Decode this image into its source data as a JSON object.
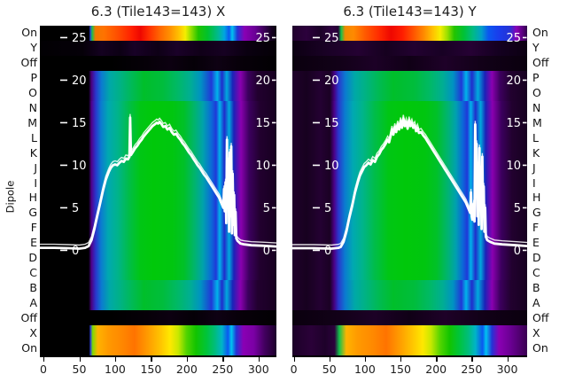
{
  "colors": {
    "background": "#ffffff",
    "text": "#1c1c1c",
    "line": "#ffffff",
    "axis": "#000000"
  },
  "chart_data": {
    "type": "heatmap",
    "ylabel": "Dipole",
    "dipole_rows_top_to_bottom": [
      "On",
      "Y",
      "Off",
      "P",
      "O",
      "N",
      "M",
      "L",
      "K",
      "J",
      "I",
      "H",
      "G",
      "F",
      "E",
      "D",
      "C",
      "B",
      "A",
      "Off",
      "X",
      "On"
    ],
    "inner_power_ticks": [
      25,
      20,
      15,
      10,
      5,
      0
    ],
    "x_ticks": [
      0,
      50,
      100,
      150,
      200,
      250,
      300
    ],
    "gradients": {
      "l_on": "linear-gradient(90deg,#000000 0%,#000000 20.8%,#2b3fd9 21.3%,#18c24b 22.1%,#f07800 23.5%,#ff7300 27%,#ff4d00 33%,#ff1e00 39%,#ee0700 42.5%,#ff2e00 46%,#ff6a00 51%,#ff9100 55%,#ffc400 59%,#f4ee00 61.5%,#8edd00 64%,#1fc400 67%,#00c22e 71%,#00b894 75.5%,#00a6e0 78%,#0b57f0 80%,#00c4f0 81.3%,#2434d6 83.5%,#8a00b4 86.5%,#6a0096 91%,#3a0055 95%,#140020 98%,#0a0010 100%)",
      "l_y": "linear-gradient(90deg,#020003 0%,#050008 18%,#140120 26%,#0c0014 34%,#180126 40%,#0e0016 50%,#1a0128 58%,#100018 68%,#160122 78%,#0a0010 88%,#040006 100%)",
      "l_off": "linear-gradient(90deg,#000000 0%,#000000 30%,#060008 45%,#0c0010 55%,#050007 65%,#0e0113 75%,#070009 85%,#020003 100%)",
      "l_ma": "linear-gradient(90deg,#000000 0%,#000000 20.6%,#4b0080 21.8%,#2a35cc 23.6%,#0b7ad0 26%,#00a8a8 29.5%,#00b284 34%,#00ba55 39%,#00bf2a 44%,#00bd3c 52%,#00b965 58%,#00ae92 63.5%,#0092c2 68%,#2038d8 72.5%,#00b4ea 75%,#1f2dcc 77%,#00aadd 79%,#1a23b8 81.5%,#8a00b0 84.8%,#3c005e 88%,#22002f 92%,#170020 100%)",
      "l_mb": "linear-gradient(90deg,#000000 0%,#000000 20.6%,#50008c 21.8%,#2a35cc 23.6%,#0b7ad0 25.8%,#00a8b2 28.8%,#00b48a 33%,#00bd4a 37.5%,#00c614 42.5%,#00c80a 48%,#00c60f 56%,#00c128 61%,#00b46e 65.5%,#00a2ac 69%,#0b6ad8 72.5%,#2038d8 74.5%,#00b4ea 76%,#1f2dcc 78%,#00aadd 80%,#1a23b8 82%,#8a00b0 85%,#3c005e 88.5%,#22002f 93%,#170020 100%)",
      "l_x": "linear-gradient(90deg,#000000 0%,#000000 20.8%,#2b3fd9 21.4%,#7ddc00 22.3%,#ffb300 24.5%,#ff9900 29%,#ff8a00 34%,#ff7300 40%,#ff9e00 46%,#ffc400 51%,#ffe800 55%,#c8e800 58.5%,#52d400 62%,#12c400 66%,#00c43a 70.5%,#00bd7c 74%,#00b4c8 77%,#0b57f0 79.5%,#00c4f0 81%,#2434d6 83%,#8a00b4 86%,#7a00a4 90.5%,#42005f 95%,#1c002a 100%)",
      "r_on": "linear-gradient(90deg,#21012e 0%,#2c013c 6%,#1c0128 12%,#300142 17%,#260134 19.5%,#14c24b 20.8%,#f08a00 22.5%,#ff8a00 26%,#ff5a00 31%,#ff2a00 37%,#ee0700 42%,#ff1e00 47%,#ff4d00 51%,#ff8a00 56%,#ffc400 60%,#f4ee00 63%,#9ae000 66%,#22c400 69%,#00c235 73%,#00ba86 77%,#00a0c8 80.5%,#0b57f0 83.5%,#1a3cec 88%,#2434d6 92.5%,#8a00b4 95.5%,#5a0080 98%,#30004a 100%)",
      "r_y": "linear-gradient(90deg,#0c0012 0%,#1a0126 15%,#240132 28%,#16011f 40%,#220130 52%,#180124 64%,#260134 76%,#140020 88%,#0c0012 100%)",
      "r_off": "linear-gradient(90deg,#0a000e 0%,#120118 20%,#1c0126 35%,#100016 50%,#1e0128 65%,#120118 80%,#0a000e 100%)",
      "r_ma": "linear-gradient(90deg,#20012c 0%,#17011f 6%,#240132 12%,#1a0124 16%,#46007e 17.8%,#2a35cc 19.6%,#0b7ad0 22.5%,#00a8a8 26.5%,#00b284 31%,#00ba55 36.5%,#00bf2a 43%,#00bd3c 52%,#00b965 58.5%,#00ae92 64%,#0092c2 68.5%,#2038d8 72%,#00b4ea 74%,#1f2dcc 76.5%,#00aadd 79%,#1a23b8 82%,#8a00b0 85%,#3c005e 88.5%,#22012f 93%,#170120 100%)",
      "r_mb": "linear-gradient(90deg,#20012c 0%,#17011f 6%,#240132 12%,#1a0124 16%,#4c0086 17.8%,#2a35cc 19.6%,#0b7ad0 22.3%,#00a8b2 25.8%,#00b48a 30%,#00bd4a 35%,#00c614 41%,#00c80a 48%,#00c60f 56.5%,#00c128 61.5%,#00b46e 66%,#00a2ac 69.5%,#0b6ad8 72.5%,#2038d8 74.5%,#00b4ea 76%,#1f2dcc 78%,#00aadd 80.2%,#1a23b8 82.3%,#8a00b0 85.2%,#3c005e 89%,#22012f 93.5%,#170120 100%)",
      "r_x": "linear-gradient(90deg,#1c0128 0%,#2a0138 8%,#1e012a 14%,#2c013c 18%,#14c24b 20%,#ffb300 23%,#ff9900 28%,#ff8a00 34%,#ff7300 40%,#ff9e00 46%,#ffc400 51%,#ffe800 55.5%,#c8e800 59%,#52d400 63%,#12c400 67%,#00c43a 71%,#00bd7c 75%,#00b4c8 78%,#0b57f0 81%,#00c4f0 82.5%,#2434d6 85%,#8a00b4 88%,#6a0092 93%,#3a0052 100%)"
    },
    "panels": [
      {
        "id": "X",
        "title": "6.3 (Tile143=143) X",
        "x_range": [
          -5,
          325
        ],
        "row_styles": [
          "l_on",
          "l_y",
          "l_off",
          "l_ma",
          "l_ma",
          "l_mb",
          "l_mb",
          "l_mb",
          "l_mb",
          "l_mb",
          "l_mb",
          "l_mb",
          "l_mb",
          "l_mb",
          "l_mb",
          "l_mb",
          "l_mb",
          "l_ma",
          "l_ma",
          "l_off",
          "l_x",
          "l_x"
        ],
        "line_points": [
          [
            0,
            0.3
          ],
          [
            20,
            0.3
          ],
          [
            40,
            0.25
          ],
          [
            55,
            0.2
          ],
          [
            63,
            0.3
          ],
          [
            68,
            0.5
          ],
          [
            72,
            1.2
          ],
          [
            76,
            2.5
          ],
          [
            80,
            4
          ],
          [
            84,
            5.5
          ],
          [
            88,
            7
          ],
          [
            92,
            8.3
          ],
          [
            96,
            9.2
          ],
          [
            99,
            9.7
          ],
          [
            102,
            10
          ],
          [
            105,
            10.1
          ],
          [
            108,
            10
          ],
          [
            111,
            10.3
          ],
          [
            114,
            10.5
          ],
          [
            117,
            10.4
          ],
          [
            120,
            10.8
          ],
          [
            123,
            10.7
          ],
          [
            125,
            11
          ],
          [
            126,
            15.6
          ],
          [
            127,
            11.2
          ],
          [
            130,
            11.6
          ],
          [
            133,
            12
          ],
          [
            136,
            12.3
          ],
          [
            139,
            12.7
          ],
          [
            142,
            13
          ],
          [
            145,
            13.4
          ],
          [
            148,
            13.7
          ],
          [
            151,
            14
          ],
          [
            154,
            14.3
          ],
          [
            157,
            14.6
          ],
          [
            160,
            14.8
          ],
          [
            163,
            15
          ],
          [
            165,
            14.9
          ],
          [
            167,
            15.1
          ],
          [
            170,
            14.8
          ],
          [
            172,
            14.5
          ],
          [
            175,
            14.6
          ],
          [
            178,
            14.2
          ],
          [
            181,
            14.4
          ],
          [
            184,
            13.9
          ],
          [
            187,
            13.6
          ],
          [
            190,
            13.7
          ],
          [
            193,
            13.3
          ],
          [
            196,
            13
          ],
          [
            199,
            12.6
          ],
          [
            202,
            12.3
          ],
          [
            205,
            11.9
          ],
          [
            208,
            11.5
          ],
          [
            211,
            11.2
          ],
          [
            214,
            10.8
          ],
          [
            217,
            10.4
          ],
          [
            220,
            10
          ],
          [
            223,
            9.7
          ],
          [
            226,
            9.3
          ],
          [
            229,
            8.9
          ],
          [
            232,
            8.6
          ],
          [
            235,
            8.2
          ],
          [
            238,
            7.8
          ],
          [
            241,
            7.4
          ],
          [
            244,
            7
          ],
          [
            247,
            6.6
          ],
          [
            250,
            6.2
          ],
          [
            252,
            5.8
          ],
          [
            254,
            5.4
          ],
          [
            256,
            5
          ],
          [
            257,
            7.2
          ],
          [
            258,
            4.6
          ],
          [
            259,
            8
          ],
          [
            260,
            3.2
          ],
          [
            261,
            13
          ],
          [
            262,
            5
          ],
          [
            263,
            10.5
          ],
          [
            264,
            2.2
          ],
          [
            265,
            11.5
          ],
          [
            266,
            4
          ],
          [
            267,
            12.2
          ],
          [
            268,
            2
          ],
          [
            269,
            9
          ],
          [
            270,
            3
          ],
          [
            271,
            6.5
          ],
          [
            272,
            1.8
          ],
          [
            273,
            4.5
          ],
          [
            274,
            1.4
          ],
          [
            276,
            1.1
          ],
          [
            280,
            0.8
          ],
          [
            285,
            0.7
          ],
          [
            295,
            0.6
          ],
          [
            310,
            0.55
          ],
          [
            330,
            0.45
          ]
        ]
      },
      {
        "id": "Y",
        "title": "6.3 (Tile143=143) Y",
        "x_range": [
          -2,
          328
        ],
        "row_styles": [
          "r_on",
          "r_y",
          "r_off",
          "r_ma",
          "r_ma",
          "r_mb",
          "r_mb",
          "r_mb",
          "r_mb",
          "r_mb",
          "r_mb",
          "r_mb",
          "r_mb",
          "r_mb",
          "r_mb",
          "r_mb",
          "r_mb",
          "r_ma",
          "r_ma",
          "r_off",
          "r_x",
          "r_x"
        ],
        "line_points": [
          [
            0,
            0.25
          ],
          [
            30,
            0.25
          ],
          [
            55,
            0.2
          ],
          [
            65,
            0.3
          ],
          [
            68,
            0.4
          ],
          [
            72,
            1
          ],
          [
            76,
            2.2
          ],
          [
            80,
            3.8
          ],
          [
            84,
            5.2
          ],
          [
            88,
            6.8
          ],
          [
            92,
            8
          ],
          [
            95,
            8.8
          ],
          [
            98,
            9.3
          ],
          [
            101,
            9.8
          ],
          [
            104,
            10
          ],
          [
            107,
            10.3
          ],
          [
            110,
            10.1
          ],
          [
            113,
            10.6
          ],
          [
            116,
            10.4
          ],
          [
            119,
            11
          ],
          [
            122,
            11.3
          ],
          [
            125,
            11.8
          ],
          [
            128,
            12.1
          ],
          [
            131,
            12.5
          ],
          [
            134,
            13
          ],
          [
            136,
            12.7
          ],
          [
            138,
            13.4
          ],
          [
            140,
            14.2
          ],
          [
            142,
            13.6
          ],
          [
            144,
            14.5
          ],
          [
            146,
            13.9
          ],
          [
            148,
            14.8
          ],
          [
            150,
            14.2
          ],
          [
            152,
            15.2
          ],
          [
            154,
            14.4
          ],
          [
            156,
            15.5
          ],
          [
            158,
            14.6
          ],
          [
            160,
            15.1
          ],
          [
            162,
            14.3
          ],
          [
            164,
            15.3
          ],
          [
            166,
            14.6
          ],
          [
            168,
            15
          ],
          [
            170,
            14.4
          ],
          [
            172,
            14.7
          ],
          [
            174,
            14
          ],
          [
            176,
            14.4
          ],
          [
            178,
            13.8
          ],
          [
            181,
            13.9
          ],
          [
            184,
            13.5
          ],
          [
            187,
            13.2
          ],
          [
            190,
            12.8
          ],
          [
            193,
            12.4
          ],
          [
            196,
            12
          ],
          [
            199,
            11.6
          ],
          [
            202,
            11.2
          ],
          [
            205,
            10.8
          ],
          [
            208,
            10.4
          ],
          [
            211,
            10
          ],
          [
            214,
            9.6
          ],
          [
            217,
            9.2
          ],
          [
            220,
            8.8
          ],
          [
            223,
            8.4
          ],
          [
            226,
            8
          ],
          [
            229,
            7.6
          ],
          [
            232,
            7.2
          ],
          [
            235,
            6.8
          ],
          [
            238,
            6.4
          ],
          [
            241,
            6
          ],
          [
            244,
            5.6
          ],
          [
            246,
            5.2
          ],
          [
            248,
            4.8
          ],
          [
            250,
            4.4
          ],
          [
            251,
            6.8
          ],
          [
            252,
            4
          ],
          [
            253,
            3.6
          ],
          [
            255,
            5.5
          ],
          [
            256,
            3.4
          ],
          [
            257,
            14.8
          ],
          [
            258,
            8
          ],
          [
            259,
            12.5
          ],
          [
            260,
            4
          ],
          [
            261,
            10
          ],
          [
            262,
            3
          ],
          [
            263,
            12
          ],
          [
            264,
            5.5
          ],
          [
            265,
            9.5
          ],
          [
            266,
            2.5
          ],
          [
            267,
            11
          ],
          [
            268,
            4
          ],
          [
            269,
            7.5
          ],
          [
            270,
            2.2
          ],
          [
            271,
            5
          ],
          [
            272,
            1.6
          ],
          [
            274,
            1.2
          ],
          [
            278,
            1
          ],
          [
            284,
            0.8
          ],
          [
            295,
            0.7
          ],
          [
            315,
            0.6
          ],
          [
            330,
            0.5
          ]
        ]
      }
    ]
  }
}
